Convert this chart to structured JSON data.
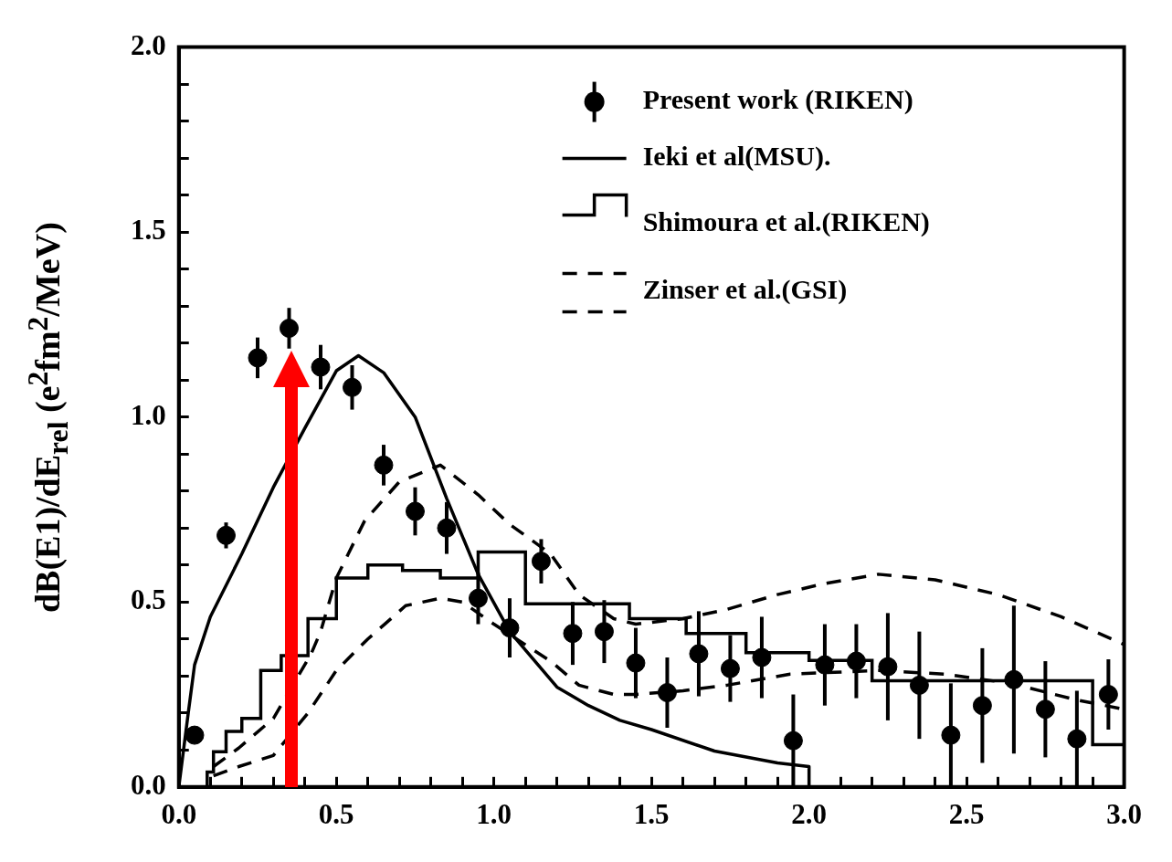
{
  "chart_data": {
    "type": "scatter",
    "ylabel": "dB(E1)/dE$_{rel}$ (e$^{2}$fm$^{2}$/MeV)",
    "xlim": [
      0,
      3
    ],
    "ylim": [
      0,
      2
    ],
    "xticks": [
      {
        "value": 0,
        "label": "0.0"
      },
      {
        "value": 0.1,
        "label": null
      },
      {
        "value": 0.2,
        "label": null
      },
      {
        "value": 0.3,
        "label": null
      },
      {
        "value": 0.4,
        "label": null
      },
      {
        "value": 0.5,
        "label": "0.5"
      },
      {
        "value": 0.6,
        "label": null
      },
      {
        "value": 0.7,
        "label": null
      },
      {
        "value": 0.8,
        "label": null
      },
      {
        "value": 0.9,
        "label": null
      },
      {
        "value": 1,
        "label": "1.0"
      },
      {
        "value": 1.1,
        "label": null
      },
      {
        "value": 1.2,
        "label": null
      },
      {
        "value": 1.3,
        "label": null
      },
      {
        "value": 1.4,
        "label": null
      },
      {
        "value": 1.5,
        "label": "1.5"
      },
      {
        "value": 1.6,
        "label": null
      },
      {
        "value": 1.7,
        "label": null
      },
      {
        "value": 1.8,
        "label": null
      },
      {
        "value": 1.9,
        "label": null
      },
      {
        "value": 2,
        "label": "2.0"
      },
      {
        "value": 2.1,
        "label": null
      },
      {
        "value": 2.2,
        "label": null
      },
      {
        "value": 2.3,
        "label": null
      },
      {
        "value": 2.4,
        "label": null
      },
      {
        "value": 2.5,
        "label": "2.5"
      },
      {
        "value": 2.6,
        "label": null
      },
      {
        "value": 2.7,
        "label": null
      },
      {
        "value": 2.8,
        "label": null
      },
      {
        "value": 2.9,
        "label": null
      },
      {
        "value": 3,
        "label": "3.0"
      }
    ],
    "yticks": [
      {
        "value": 0,
        "label": "0.0"
      },
      {
        "value": 0.1,
        "label": null
      },
      {
        "value": 0.2,
        "label": null
      },
      {
        "value": 0.3,
        "label": null
      },
      {
        "value": 0.4,
        "label": null
      },
      {
        "value": 0.5,
        "label": "0.5"
      },
      {
        "value": 0.6,
        "label": null
      },
      {
        "value": 0.7,
        "label": null
      },
      {
        "value": 0.8,
        "label": null
      },
      {
        "value": 0.9,
        "label": null
      },
      {
        "value": 1,
        "label": "1.0"
      },
      {
        "value": 1.1,
        "label": null
      },
      {
        "value": 1.2,
        "label": null
      },
      {
        "value": 1.3,
        "label": null
      },
      {
        "value": 1.4,
        "label": null
      },
      {
        "value": 1.5,
        "label": "1.5"
      },
      {
        "value": 1.6,
        "label": null
      },
      {
        "value": 1.7,
        "label": null
      },
      {
        "value": 1.8,
        "label": null
      },
      {
        "value": 1.9,
        "label": null
      },
      {
        "value": 2,
        "label": "2.0"
      }
    ],
    "grid": false,
    "legend": "top right",
    "series": [
      {
        "name": "Present work (RIKEN)",
        "type": "scatter",
        "marker": "circle",
        "color": "#000000",
        "x": [
          0.05,
          0.15,
          0.25,
          0.35,
          0.45,
          0.55,
          0.65,
          0.75,
          0.85,
          0.95,
          1.05,
          1.15,
          1.25,
          1.35,
          1.45,
          1.55,
          1.65,
          1.75,
          1.85,
          1.95,
          2.05,
          2.15,
          2.25,
          2.35,
          2.45,
          2.55,
          2.65,
          2.75,
          2.85,
          2.95
        ],
        "values": [
          0.14,
          0.68,
          1.16,
          1.24,
          1.135,
          1.08,
          0.87,
          0.745,
          0.7,
          0.51,
          0.43,
          0.61,
          0.415,
          0.42,
          0.335,
          0.255,
          0.36,
          0.32,
          0.35,
          0.125,
          0.33,
          0.34,
          0.325,
          0.275,
          0.14,
          0.22,
          0.29,
          0.21,
          0.13,
          0.25
        ],
        "errors": [
          0.02,
          0.035,
          0.055,
          0.055,
          0.06,
          0.06,
          0.055,
          0.065,
          0.07,
          0.07,
          0.08,
          0.06,
          0.085,
          0.085,
          0.095,
          0.095,
          0.115,
          0.09,
          0.11,
          0.125,
          0.11,
          0.1,
          0.145,
          0.145,
          0.14,
          0.155,
          0.2,
          0.13,
          0.13,
          0.095
        ]
      },
      {
        "name": "Ieki et al(MSU).",
        "type": "line",
        "line_style": "solid",
        "color": "#000000",
        "x": [
          0,
          0.03,
          0.05,
          0.1,
          0.2,
          0.3,
          0.4,
          0.5,
          0.57,
          0.65,
          0.75,
          0.85,
          0.95,
          1.05,
          1.2,
          1.3,
          1.4,
          1.5,
          1.7,
          1.9,
          2.0,
          2.0
        ],
        "values": [
          0,
          0.2,
          0.33,
          0.46,
          0.63,
          0.81,
          0.97,
          1.125,
          1.166,
          1.12,
          1.0,
          0.78,
          0.575,
          0.42,
          0.27,
          0.22,
          0.18,
          0.155,
          0.097,
          0.065,
          0.055,
          0
        ]
      },
      {
        "name": "Shimoura et al.(RIKEN)",
        "type": "step",
        "line_style": "solid",
        "color": "#000000",
        "x": [
          0.06,
          0.09,
          0.11,
          0.15,
          0.2,
          0.26,
          0.325,
          0.41,
          0.5,
          0.6,
          0.71,
          0.83,
          0.95,
          1.1,
          1.43,
          1.61,
          1.8,
          2.0,
          2.2,
          2.9,
          3.0
        ],
        "values": [
          0,
          0.04,
          0.095,
          0.15,
          0.185,
          0.315,
          0.355,
          0.455,
          0.565,
          0.6,
          0.585,
          0.565,
          0.635,
          0.495,
          0.455,
          0.415,
          0.363,
          0.342,
          0.287,
          0.114,
          0.114
        ]
      },
      {
        "name": "Zinser et al.(GSI)",
        "type": "line",
        "line_style": "dashed",
        "color": "#000000",
        "x": [
          0.11,
          0.19,
          0.3,
          0.42,
          0.45,
          0.5,
          0.59,
          0.7,
          0.83,
          0.95,
          1.05,
          1.18,
          1.27,
          1.38,
          1.45,
          1.6,
          1.74,
          1.9,
          2.05,
          2.22,
          2.4,
          2.6,
          2.8,
          2.96,
          3.0
        ],
        "values": [
          0.055,
          0.105,
          0.185,
          0.36,
          0.42,
          0.565,
          0.72,
          0.825,
          0.87,
          0.79,
          0.71,
          0.63,
          0.52,
          0.455,
          0.44,
          0.455,
          0.48,
          0.52,
          0.55,
          0.575,
          0.56,
          0.52,
          0.46,
          0.4,
          0.385
        ]
      },
      {
        "type": "line",
        "line_style": "dashed",
        "color": "#000000",
        "x": [
          0.11,
          0.19,
          0.3,
          0.41,
          0.5,
          0.6,
          0.72,
          0.83,
          0.9,
          1.0,
          1.18,
          1.27,
          1.38,
          1.45,
          1.6,
          1.74,
          1.94,
          2.22,
          2.43,
          2.64,
          2.85,
          3.0
        ],
        "values": [
          0.03,
          0.055,
          0.085,
          0.2,
          0.315,
          0.4,
          0.49,
          0.51,
          0.5,
          0.44,
          0.34,
          0.275,
          0.25,
          0.25,
          0.26,
          0.275,
          0.305,
          0.315,
          0.305,
          0.28,
          0.235,
          0.21
        ]
      }
    ]
  }
}
